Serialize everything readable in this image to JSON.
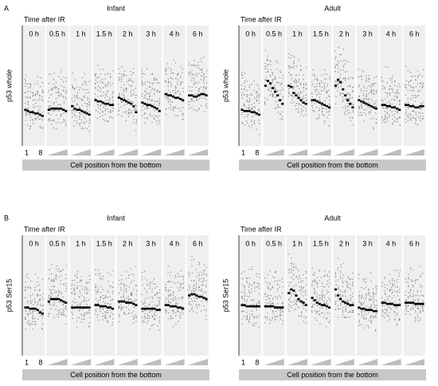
{
  "chart_data": [
    {
      "type": "dot",
      "panel_label": "A",
      "title": "Infant",
      "subtitle": "Time after IR",
      "y_label": "p53 whole",
      "x_label": "Cell position from the bottom",
      "position_labels": [
        "1",
        "8"
      ],
      "color": "#000000",
      "cloud_color": "#8a8a8a",
      "ylim": [
        0,
        100
      ],
      "categories": [
        "0 h",
        "0.5 h",
        "1 h",
        "1.5 h",
        "2 h",
        "3 h",
        "4 h",
        "6 h"
      ],
      "values": [
        [
          30,
          29,
          28,
          28,
          27,
          27,
          26,
          25
        ],
        [
          30,
          31,
          31,
          31,
          31,
          31,
          30,
          29
        ],
        [
          33,
          31,
          30,
          30,
          29,
          28,
          27,
          26
        ],
        [
          38,
          37,
          37,
          36,
          35,
          35,
          34,
          34
        ],
        [
          40,
          39,
          38,
          37,
          36,
          35,
          33,
          28
        ],
        [
          36,
          35,
          34,
          34,
          33,
          32,
          31,
          29
        ],
        [
          43,
          42,
          42,
          41,
          40,
          40,
          39,
          38
        ],
        [
          42,
          42,
          41,
          41,
          42,
          43,
          43,
          42
        ]
      ]
    },
    {
      "type": "dot",
      "title": "Adult",
      "subtitle": "Time after IR",
      "y_label": "p53 whole",
      "x_label": "Cell position from the bottom",
      "position_labels": [
        "1",
        "8"
      ],
      "color": "#000000",
      "cloud_color": "#8a8a8a",
      "ylim": [
        0,
        100
      ],
      "categories": [
        "0 h",
        "0.5 h",
        "1 h",
        "1.5 h",
        "2 h",
        "3 h",
        "4 h",
        "6 h"
      ],
      "values": [
        [
          30,
          29,
          29,
          29,
          28,
          28,
          27,
          26
        ],
        [
          50,
          54,
          52,
          48,
          45,
          42,
          38,
          35
        ],
        [
          50,
          49,
          44,
          42,
          40,
          38,
          36,
          35
        ],
        [
          38,
          38,
          37,
          36,
          35,
          34,
          33,
          32
        ],
        [
          50,
          55,
          53,
          47,
          42,
          38,
          35,
          32
        ],
        [
          38,
          37,
          36,
          35,
          34,
          33,
          32,
          31
        ],
        [
          34,
          34,
          33,
          33,
          32,
          32,
          31,
          30
        ],
        [
          34,
          34,
          33,
          33,
          32,
          32,
          33,
          33
        ]
      ]
    },
    {
      "type": "dot",
      "panel_label": "B",
      "title": "Infant",
      "subtitle": "Time after IR",
      "y_label": "p53 Ser15",
      "x_label": "Cell position from the bottom",
      "position_labels": [
        "1",
        "8"
      ],
      "color": "#000000",
      "cloud_color": "#8a8a8a",
      "ylim": [
        0,
        100
      ],
      "categories": [
        "0 h",
        "0.5 h",
        "1 h",
        "1.5 h",
        "2 h",
        "3 h",
        "4 h",
        "6 h"
      ],
      "values": [
        [
          40,
          40,
          39,
          39,
          39,
          38,
          36,
          35
        ],
        [
          45,
          47,
          47,
          47,
          47,
          46,
          45,
          44
        ],
        [
          40,
          40,
          40,
          40,
          40,
          40,
          40,
          40
        ],
        [
          42,
          42,
          41,
          41,
          41,
          40,
          40,
          39
        ],
        [
          45,
          45,
          45,
          44,
          44,
          44,
          43,
          42
        ],
        [
          39,
          39,
          39,
          39,
          39,
          39,
          38,
          38
        ],
        [
          42,
          42,
          41,
          41,
          41,
          40,
          40,
          39
        ],
        [
          50,
          51,
          51,
          50,
          49,
          49,
          48,
          47
        ]
      ]
    },
    {
      "type": "dot",
      "title": "Adult",
      "subtitle": "Time after IR",
      "y_label": "p53 Ser15",
      "x_label": "Cell position from the bottom",
      "position_labels": [
        "1",
        "8"
      ],
      "color": "#000000",
      "cloud_color": "#8a8a8a",
      "ylim": [
        0,
        100
      ],
      "categories": [
        "0 h",
        "0.5 h",
        "1 h",
        "1.5 h",
        "2 h",
        "3 h",
        "4 h",
        "6 h"
      ],
      "values": [
        [
          42,
          42,
          41,
          41,
          41,
          41,
          41,
          41
        ],
        [
          41,
          41,
          41,
          41,
          40,
          40,
          40,
          40
        ],
        [
          52,
          55,
          54,
          50,
          47,
          45,
          44,
          42
        ],
        [
          48,
          46,
          44,
          43,
          42,
          42,
          41,
          40
        ],
        [
          55,
          50,
          47,
          45,
          44,
          43,
          42,
          42
        ],
        [
          40,
          39,
          39,
          38,
          38,
          38,
          37,
          37
        ],
        [
          44,
          44,
          43,
          43,
          43,
          42,
          42,
          42
        ],
        [
          44,
          44,
          44,
          44,
          43,
          43,
          43,
          43
        ]
      ]
    }
  ]
}
